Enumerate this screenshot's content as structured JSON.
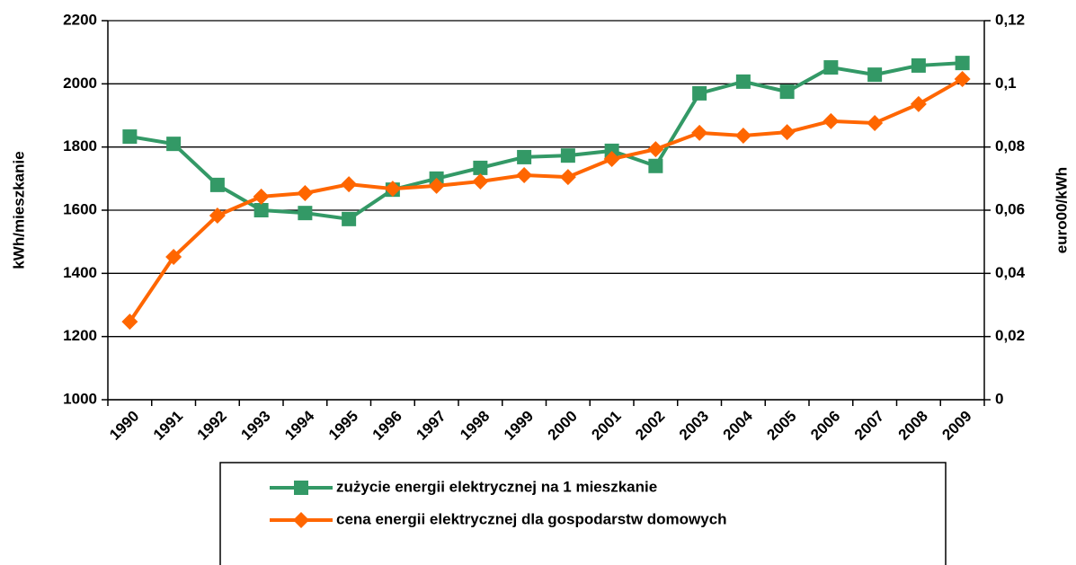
{
  "chart_data": {
    "type": "line",
    "categories": [
      "1990",
      "1991",
      "1992",
      "1993",
      "1994",
      "1995",
      "1996",
      "1997",
      "1998",
      "1999",
      "2000",
      "2001",
      "2002",
      "2003",
      "2004",
      "2005",
      "2006",
      "2007",
      "2008",
      "2009"
    ],
    "ylabel": "kWh/mieszkanie",
    "y2label": "euro00/kWh",
    "ylim": [
      1000,
      2200
    ],
    "yticks": [
      1000,
      1200,
      1400,
      1600,
      1800,
      2000,
      2200
    ],
    "y2lim": [
      0,
      0.12
    ],
    "y2ticks": [
      0,
      {
        "value": 0.02,
        "label": "0,02"
      },
      {
        "value": 0.04,
        "label": "0,04"
      },
      {
        "value": 0.06,
        "label": "0,06"
      },
      {
        "value": 0.08,
        "label": "0,08"
      },
      {
        "value": 0.1,
        "label": "0,1"
      },
      {
        "value": 0.12,
        "label": "0,12"
      }
    ],
    "grid": true,
    "legend": "bottom",
    "series": [
      {
        "name": "zużycie energii elektrycznej na 1 mieszkanie",
        "color": "#339966",
        "marker": "square",
        "values": [
          1833,
          1810,
          1680,
          1600,
          1591,
          1572,
          1665,
          1700,
          1734,
          1768,
          1773,
          1788,
          1740,
          1970,
          2007,
          1975,
          2052,
          2029,
          2058,
          2066
        ]
      },
      {
        "name": "cena energii elektrycznej dla gospodarstw domowych",
        "color": "#ff6600",
        "marker": "diamond",
        "axis": "y2",
        "values": [
          0.0247,
          0.0452,
          0.0583,
          0.0643,
          0.0654,
          0.0682,
          0.0668,
          0.0677,
          0.0691,
          0.0711,
          0.0705,
          0.0762,
          0.0793,
          0.0845,
          0.0836,
          0.0847,
          0.0882,
          0.0876,
          0.0936,
          0.1015
        ]
      }
    ]
  }
}
